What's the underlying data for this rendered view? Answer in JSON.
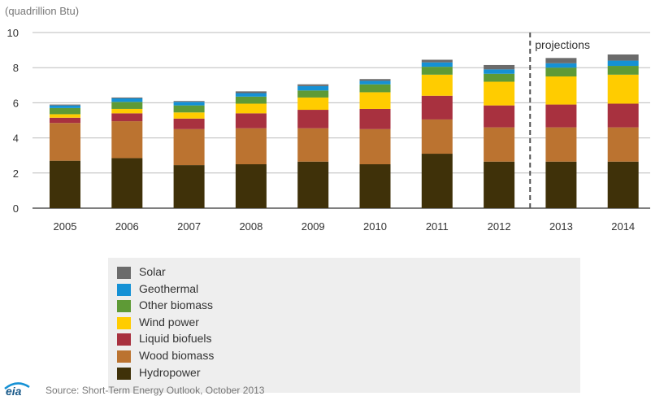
{
  "unit_label": "(quadrillion Btu)",
  "projection_label": "projections",
  "source": "Source: Short-Term Energy Outlook, October 2013",
  "logo_text": "eia",
  "chart_data": {
    "type": "bar",
    "stacked": true,
    "categories": [
      "2005",
      "2006",
      "2007",
      "2008",
      "2009",
      "2010",
      "2011",
      "2012",
      "2013",
      "2014"
    ],
    "ylim": [
      0,
      10
    ],
    "yticks": [
      0,
      2,
      4,
      6,
      8,
      10
    ],
    "grid": true,
    "projection_start_index": 8,
    "series": [
      {
        "name": "Hydropower",
        "color": "#3f3109",
        "values": [
          2.7,
          2.85,
          2.45,
          2.5,
          2.65,
          2.5,
          3.1,
          2.65,
          2.65,
          2.65
        ]
      },
      {
        "name": "Wood biomass",
        "color": "#bb7330",
        "values": [
          2.15,
          2.1,
          2.05,
          2.05,
          1.9,
          2.0,
          1.95,
          1.95,
          1.95,
          1.95
        ]
      },
      {
        "name": "Liquid biofuels",
        "color": "#a8313f",
        "values": [
          0.3,
          0.45,
          0.6,
          0.85,
          1.05,
          1.15,
          1.35,
          1.25,
          1.3,
          1.35
        ]
      },
      {
        "name": "Wind power",
        "color": "#ffcc00",
        "values": [
          0.2,
          0.25,
          0.35,
          0.55,
          0.7,
          0.95,
          1.2,
          1.35,
          1.6,
          1.65
        ]
      },
      {
        "name": "Other biomass",
        "color": "#5e9a36",
        "values": [
          0.35,
          0.4,
          0.4,
          0.4,
          0.4,
          0.45,
          0.45,
          0.45,
          0.5,
          0.5
        ]
      },
      {
        "name": "Geothermal",
        "color": "#1591d5",
        "values": [
          0.15,
          0.2,
          0.2,
          0.2,
          0.25,
          0.2,
          0.25,
          0.25,
          0.25,
          0.3
        ]
      },
      {
        "name": "Solar",
        "color": "#6b6b6b",
        "values": [
          0.05,
          0.05,
          0.05,
          0.1,
          0.1,
          0.1,
          0.15,
          0.25,
          0.3,
          0.35
        ]
      }
    ],
    "legend": [
      "Solar",
      "Geothermal",
      "Other biomass",
      "Wind power",
      "Liquid biofuels",
      "Wood biomass",
      "Hydropower"
    ],
    "legend_placement": "bottom"
  }
}
